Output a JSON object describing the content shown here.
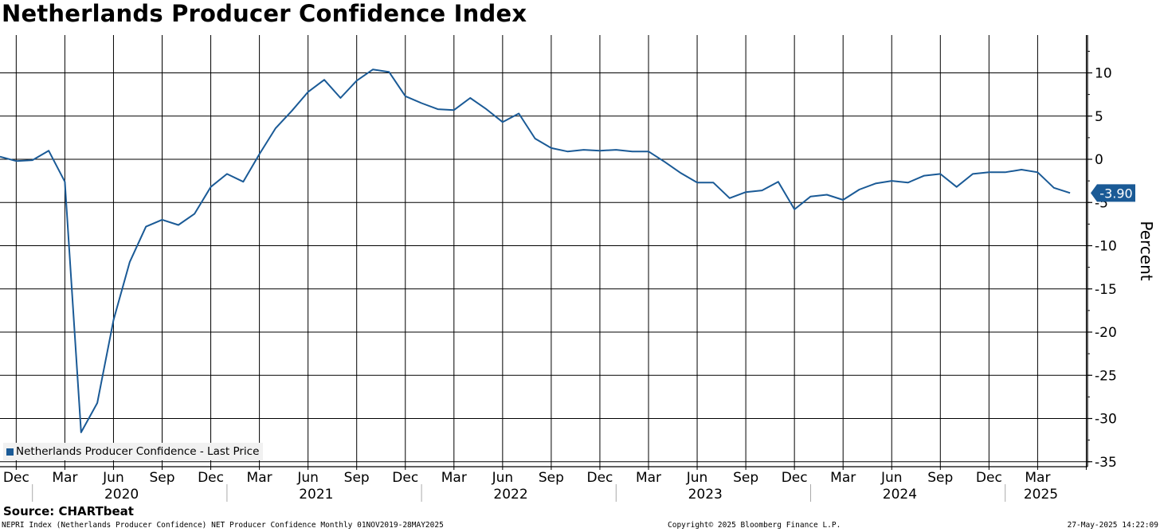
{
  "title": "Netherlands Producer Confidence Index",
  "legend_label": "Netherlands Producer Confidence - Last Price",
  "source": "Source: CHARTbeat",
  "footer": {
    "left": "NEPRI Index (Netherlands Producer Confidence) NET Producer Confidence  Monthly 01NOV2019-28MAY2025",
    "center": "Copyright© 2025 Bloomberg Finance L.P.",
    "right": "27-May-2025 14:22:09"
  },
  "colors": {
    "line": "#1a5a96",
    "grid": "#000000",
    "last_price_badge": "#1a5a96"
  },
  "chart_data": {
    "type": "line",
    "title": "Netherlands Producer Confidence Index",
    "ylabel": "Percent",
    "ylim": [
      -36,
      14.5
    ],
    "yticks": [
      10,
      5,
      0,
      -5,
      -10,
      -15,
      -20,
      -25,
      -30,
      -35
    ],
    "ytick_labels": [
      "10",
      "5",
      "0",
      "-5",
      "-10",
      "-15",
      "-20",
      "-25",
      "-30",
      "-35"
    ],
    "grid": true,
    "legend_position": "bottom-left",
    "last_value_label": "-3.90",
    "x_month_labels": [
      "Dec",
      "Mar",
      "Jun",
      "Sep",
      "Dec",
      "Mar",
      "Jun",
      "Sep",
      "Dec",
      "Mar",
      "Jun",
      "Sep",
      "Dec",
      "Mar",
      "Jun",
      "Sep",
      "Dec",
      "Mar",
      "Jun",
      "Sep",
      "Dec",
      "Mar"
    ],
    "x_year_labels": [
      "2020",
      "2021",
      "2022",
      "2023",
      "2024",
      "2025"
    ],
    "series": [
      {
        "name": "Netherlands Producer Confidence - Last Price",
        "x": [
          "2019-11",
          "2019-12",
          "2020-01",
          "2020-02",
          "2020-03",
          "2020-04",
          "2020-05",
          "2020-06",
          "2020-07",
          "2020-08",
          "2020-09",
          "2020-10",
          "2020-11",
          "2020-12",
          "2021-01",
          "2021-02",
          "2021-03",
          "2021-04",
          "2021-05",
          "2021-06",
          "2021-07",
          "2021-08",
          "2021-09",
          "2021-10",
          "2021-11",
          "2021-12",
          "2022-01",
          "2022-02",
          "2022-03",
          "2022-04",
          "2022-05",
          "2022-06",
          "2022-07",
          "2022-08",
          "2022-09",
          "2022-10",
          "2022-11",
          "2022-12",
          "2023-01",
          "2023-02",
          "2023-03",
          "2023-04",
          "2023-05",
          "2023-06",
          "2023-07",
          "2023-08",
          "2023-09",
          "2023-10",
          "2023-11",
          "2023-12",
          "2024-01",
          "2024-02",
          "2024-03",
          "2024-04",
          "2024-05",
          "2024-06",
          "2024-07",
          "2024-08",
          "2024-09",
          "2024-10",
          "2024-11",
          "2024-12",
          "2025-01",
          "2025-02",
          "2025-03",
          "2025-04",
          "2025-05"
        ],
        "values": [
          0.3,
          -0.2,
          -0.1,
          1.0,
          -2.6,
          -31.6,
          -28.2,
          -18.6,
          -11.9,
          -7.8,
          -7.0,
          -7.6,
          -6.3,
          -3.2,
          -1.7,
          -2.6,
          0.6,
          3.6,
          5.6,
          7.8,
          9.2,
          7.1,
          9.1,
          10.4,
          10.1,
          7.3,
          6.5,
          5.8,
          5.7,
          7.1,
          5.8,
          4.3,
          5.3,
          2.4,
          1.3,
          0.9,
          1.1,
          1.0,
          1.1,
          0.9,
          0.9,
          -0.3,
          -1.6,
          -2.7,
          -2.7,
          -4.5,
          -3.8,
          -3.6,
          -2.6,
          -5.8,
          -4.3,
          -4.1,
          -4.7,
          -3.5,
          -2.8,
          -2.5,
          -2.7,
          -1.9,
          -1.7,
          -3.2,
          -1.7,
          -1.5,
          -1.5,
          -1.2,
          -1.5,
          -3.3,
          -3.9
        ]
      }
    ]
  }
}
